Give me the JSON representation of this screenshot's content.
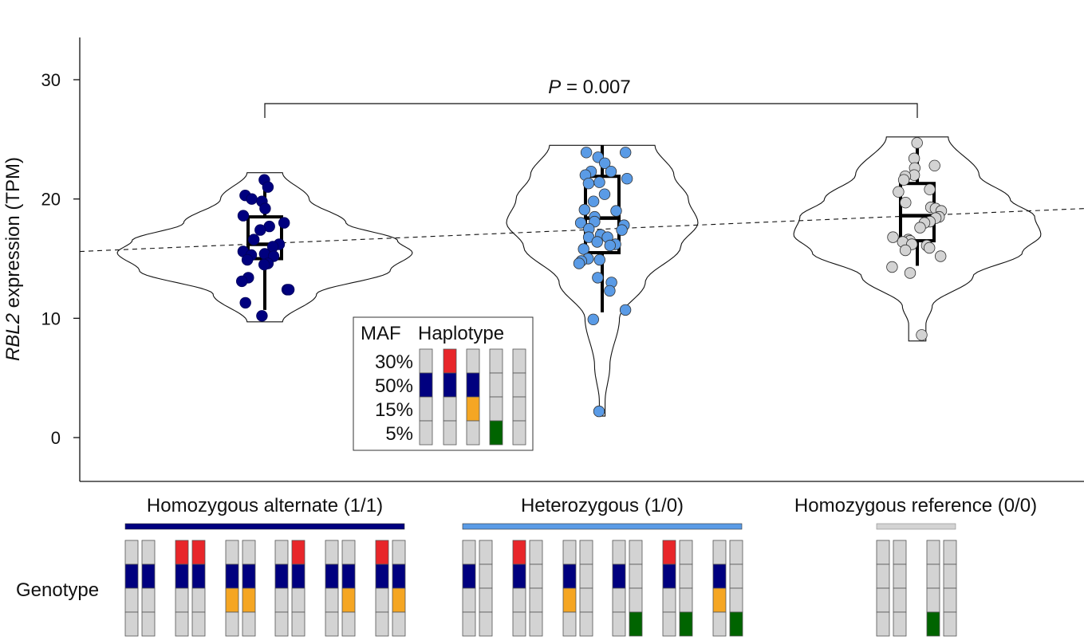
{
  "chart_data": {
    "type": "violin",
    "ylabel_gene": "RBL2",
    "ylabel_rest": " expression (TPM)",
    "ylim": [
      -3.5,
      33.5
    ],
    "yticks": [
      0,
      10,
      20,
      30
    ],
    "pvalue_P": "P",
    "pvalue_rest": " = 0.007",
    "colors": {
      "alt": "#00007f",
      "het": "#5a9be6",
      "ref": "#d3d3d3",
      "red": "#e8262a",
      "orange": "#f5a623",
      "green": "#006400",
      "hap_grey": "#d3d3d3"
    },
    "groups": [
      {
        "label": "Homozygous alternate (1/1)",
        "color": "#00007f",
        "box": {
          "min": 10.7,
          "q1": 15.0,
          "median": 16.2,
          "q3": 18.5,
          "max": 22.0
        },
        "violin_range": [
          9.7,
          22.2
        ],
        "points": [
          21.6,
          21.0,
          20.3,
          20.0,
          19.8,
          19.2,
          18.6,
          18.0,
          17.7,
          17.4,
          16.6,
          16.2,
          16.0,
          15.6,
          15.4,
          15.3,
          15.2,
          14.9,
          14.6,
          14.5,
          13.4,
          13.1,
          12.4,
          12.4,
          11.3,
          10.2
        ]
      },
      {
        "label": "Heterozygous (1/0)",
        "color": "#5a9be6",
        "box": {
          "min": 10.5,
          "q1": 15.5,
          "median": 18.4,
          "q3": 21.9,
          "max": 24.5
        },
        "violin_range": [
          1.8,
          24.5
        ],
        "points": [
          23.9,
          23.9,
          23.5,
          23.0,
          22.3,
          22.3,
          22.0,
          21.7,
          21.4,
          21.3,
          20.4,
          19.8,
          19.1,
          19.0,
          18.5,
          18.1,
          18.0,
          17.8,
          17.5,
          17.4,
          17.0,
          16.8,
          16.8,
          16.4,
          16.2,
          16.1,
          15.8,
          15.0,
          14.9,
          14.8,
          14.6,
          13.4,
          13.0,
          12.3,
          10.7,
          9.9,
          2.2
        ]
      },
      {
        "label": "Homozygous reference (0/0)",
        "color": "#d3d3d3",
        "box": {
          "min": 14.4,
          "q1": 16.5,
          "median": 18.6,
          "q3": 21.3,
          "max": 25.1
        },
        "violin_range": [
          8.1,
          25.2
        ],
        "points": [
          24.7,
          23.4,
          22.8,
          22.6,
          22.0,
          21.9,
          21.6,
          20.8,
          20.6,
          19.7,
          19.3,
          19.2,
          19.0,
          18.5,
          18.4,
          18.1,
          18.0,
          17.6,
          16.8,
          16.6,
          16.5,
          16.4,
          16.2,
          16.1,
          15.9,
          15.7,
          15.2,
          14.3,
          13.8,
          8.6
        ]
      }
    ],
    "trend_line": {
      "x_from_group": 0,
      "y_start": 15.6,
      "y_end": 19.2,
      "style": "dashed"
    },
    "legend": {
      "col1_header": "MAF",
      "col2_header": "Haplotype",
      "rows": [
        "30%",
        "50%",
        "15%",
        "5%"
      ],
      "haplotypes": [
        [
          "grey",
          "blue",
          "grey",
          "grey"
        ],
        [
          "red",
          "blue",
          "grey",
          "grey"
        ],
        [
          "grey",
          "blue",
          "orange",
          "grey"
        ],
        [
          "grey",
          "grey",
          "grey",
          "green"
        ],
        [
          "grey",
          "grey",
          "grey",
          "grey"
        ]
      ]
    },
    "genotype_label": "Genotype",
    "genotypes": {
      "alt": [
        [
          [
            "grey",
            "blue",
            "grey",
            "grey"
          ],
          [
            "grey",
            "blue",
            "grey",
            "grey"
          ]
        ],
        [
          [
            "red",
            "blue",
            "grey",
            "grey"
          ],
          [
            "red",
            "blue",
            "grey",
            "grey"
          ]
        ],
        [
          [
            "grey",
            "blue",
            "orange",
            "grey"
          ],
          [
            "grey",
            "blue",
            "orange",
            "grey"
          ]
        ],
        [
          [
            "grey",
            "blue",
            "grey",
            "grey"
          ],
          [
            "red",
            "blue",
            "grey",
            "grey"
          ]
        ],
        [
          [
            "grey",
            "blue",
            "grey",
            "grey"
          ],
          [
            "grey",
            "blue",
            "orange",
            "grey"
          ]
        ],
        [
          [
            "red",
            "blue",
            "grey",
            "grey"
          ],
          [
            "grey",
            "blue",
            "orange",
            "grey"
          ]
        ]
      ],
      "het": [
        [
          [
            "grey",
            "blue",
            "grey",
            "grey"
          ],
          [
            "grey",
            "grey",
            "grey",
            "grey"
          ]
        ],
        [
          [
            "red",
            "blue",
            "grey",
            "grey"
          ],
          [
            "grey",
            "grey",
            "grey",
            "grey"
          ]
        ],
        [
          [
            "grey",
            "blue",
            "orange",
            "grey"
          ],
          [
            "grey",
            "grey",
            "grey",
            "grey"
          ]
        ],
        [
          [
            "grey",
            "blue",
            "grey",
            "grey"
          ],
          [
            "grey",
            "grey",
            "grey",
            "green"
          ]
        ],
        [
          [
            "red",
            "blue",
            "grey",
            "grey"
          ],
          [
            "grey",
            "grey",
            "grey",
            "green"
          ]
        ],
        [
          [
            "grey",
            "blue",
            "orange",
            "grey"
          ],
          [
            "grey",
            "grey",
            "grey",
            "green"
          ]
        ]
      ],
      "ref": [
        [
          [
            "grey",
            "grey",
            "grey",
            "grey"
          ],
          [
            "grey",
            "grey",
            "grey",
            "grey"
          ]
        ],
        [
          [
            "grey",
            "grey",
            "grey",
            "green"
          ],
          [
            "grey",
            "grey",
            "grey",
            "grey"
          ]
        ]
      ]
    }
  }
}
